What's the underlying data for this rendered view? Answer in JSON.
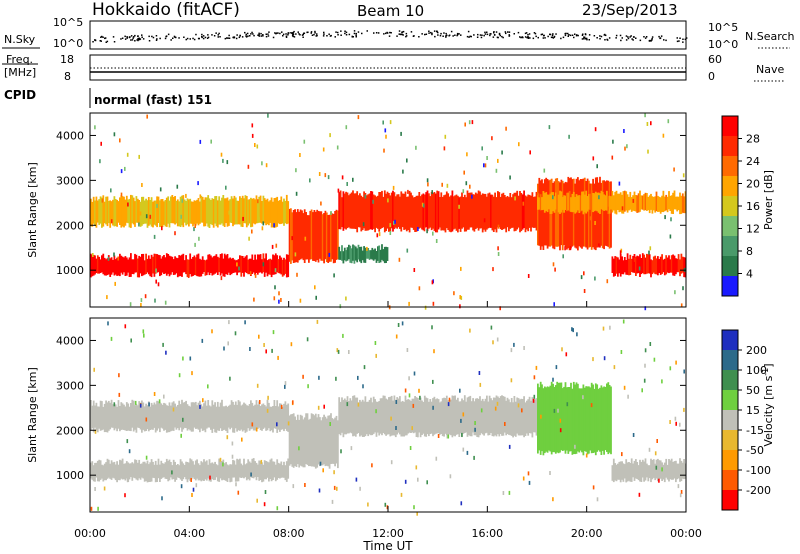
{
  "header": {
    "station": "Hokkaido (fitACF)",
    "beam": "Beam 10",
    "date": "23/Sep/2013"
  },
  "top_panels": {
    "nsky_label": "N.Sky",
    "nsky_left_ticks": [
      "10^5",
      "10^0"
    ],
    "nsky_right_ticks": [
      "10^5",
      "10^0"
    ],
    "nsearch_label": "N.Search",
    "freq_label_1": "Freq.",
    "freq_label_2": "[MHz]",
    "freq_left_ticks": [
      "18",
      "8"
    ],
    "nave_right_ticks": [
      "60",
      "0"
    ],
    "nave_label": "Nave",
    "cpid_label": "CPID",
    "cpid_text": "normal (fast) 151"
  },
  "colors": {
    "power_scale": [
      "#1a1aff",
      "#2a7a4a",
      "#4a9a6a",
      "#7ac070",
      "#d4c81e",
      "#ffa500",
      "#ff6a00",
      "#ff2a00",
      "#ff0000"
    ],
    "velocity_scale": [
      "#1f2fbf",
      "#2c6a8a",
      "#3f8f4f",
      "#6fcf3f",
      "#c0c0b8",
      "#e8b830",
      "#ff9a00",
      "#ff5a00",
      "#ff0000"
    ]
  },
  "chart_data": [
    {
      "type": "heatmap",
      "name": "power",
      "title": "",
      "xlabel": "Time UT",
      "ylabel": "Slant Range [km]",
      "x_ticks": [
        "00:00",
        "04:00",
        "08:00",
        "12:00",
        "16:00",
        "20:00",
        "00:00"
      ],
      "y_ticks": [
        1000,
        2000,
        3000,
        4000
      ],
      "ylim": [
        180,
        4500
      ],
      "colorbar": {
        "label": "Power [dB]",
        "ticks": [
          4,
          8,
          12,
          16,
          20,
          24,
          28
        ],
        "range": [
          0,
          32
        ]
      },
      "bands": [
        {
          "t_start": 0,
          "t_end": 8,
          "r_start": 900,
          "r_end": 1300,
          "value": 30
        },
        {
          "t_start": 8,
          "t_end": 10,
          "r_start": 1200,
          "r_end": 2300,
          "value": 26
        },
        {
          "t_start": 10,
          "t_end": 18,
          "r_start": 1900,
          "r_end": 2700,
          "value": 27
        },
        {
          "t_start": 18,
          "t_end": 21,
          "r_start": 1500,
          "r_end": 3000,
          "value": 26
        },
        {
          "t_start": 21,
          "t_end": 24,
          "r_start": 900,
          "r_end": 1300,
          "value": 29
        },
        {
          "t_start": 0,
          "t_end": 8,
          "r_start": 2000,
          "r_end": 2600,
          "value": 18
        },
        {
          "t_start": 18,
          "t_end": 24,
          "r_start": 2300,
          "r_end": 2700,
          "value": 20
        },
        {
          "t_start": 10,
          "t_end": 12,
          "r_start": 1200,
          "r_end": 1500,
          "value": 6
        }
      ]
    },
    {
      "type": "heatmap",
      "name": "velocity",
      "title": "",
      "xlabel": "Time UT",
      "ylabel": "Slant Range [km]",
      "x_ticks": [
        "00:00",
        "04:00",
        "08:00",
        "12:00",
        "16:00",
        "20:00",
        "00:00"
      ],
      "y_ticks": [
        1000,
        2000,
        3000,
        4000
      ],
      "ylim": [
        180,
        4500
      ],
      "colorbar": {
        "label": "Velocity [m s^-1]",
        "ticks": [
          "200",
          "100",
          "50",
          "15",
          "-15",
          "-50",
          "-100",
          "-200"
        ],
        "range": [
          -250,
          250
        ]
      },
      "bands": [
        {
          "t_start": 0,
          "t_end": 8,
          "r_start": 900,
          "r_end": 1300,
          "value": 0
        },
        {
          "t_start": 8,
          "t_end": 10,
          "r_start": 1200,
          "r_end": 2300,
          "value": 0
        },
        {
          "t_start": 10,
          "t_end": 18,
          "r_start": 1900,
          "r_end": 2700,
          "value": 0
        },
        {
          "t_start": 18,
          "t_end": 21,
          "r_start": 1500,
          "r_end": 3000,
          "value": 70
        },
        {
          "t_start": 21,
          "t_end": 24,
          "r_start": 900,
          "r_end": 1300,
          "value": 0
        },
        {
          "t_start": 0,
          "t_end": 8,
          "r_start": 2000,
          "r_end": 2600,
          "value": 0
        }
      ]
    }
  ]
}
